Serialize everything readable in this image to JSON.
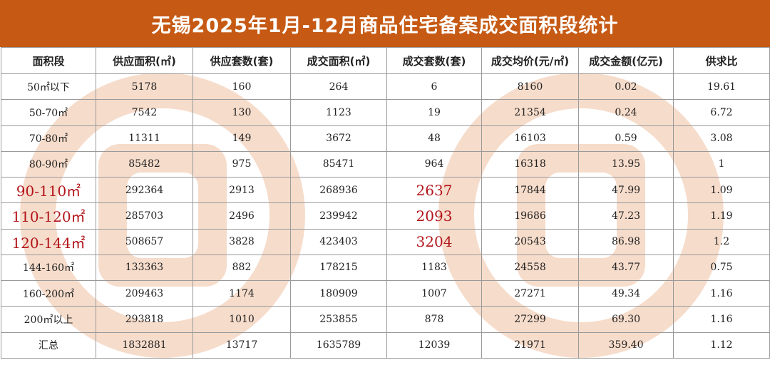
{
  "title": "无锡2025年1月-12月商品住宅备案成交面积段统计",
  "columns": [
    "面积段",
    "供应面积(㎡)",
    "供应套数(套)",
    "成交面积(㎡)",
    "成交套数(套)",
    "成交均价(元/㎡)",
    "成交金额(亿元)",
    "供求比"
  ],
  "rows": [
    {
      "segment": "50㎡以下",
      "supply_area": "5178",
      "supply_units": "160",
      "deal_area": "264",
      "deal_units": "6",
      "avg_price": "8160",
      "amount": "0.02",
      "ratio": "19.61",
      "highlight": false
    },
    {
      "segment": "50-70㎡",
      "supply_area": "7542",
      "supply_units": "130",
      "deal_area": "1123",
      "deal_units": "19",
      "avg_price": "21354",
      "amount": "0.24",
      "ratio": "6.72",
      "highlight": false
    },
    {
      "segment": "70-80㎡",
      "supply_area": "11311",
      "supply_units": "149",
      "deal_area": "3672",
      "deal_units": "48",
      "avg_price": "16103",
      "amount": "0.59",
      "ratio": "3.08",
      "highlight": false
    },
    {
      "segment": "80-90㎡",
      "supply_area": "85482",
      "supply_units": "975",
      "deal_area": "85471",
      "deal_units": "964",
      "avg_price": "16318",
      "amount": "13.95",
      "ratio": "1",
      "highlight": false
    },
    {
      "segment": "90-110㎡",
      "supply_area": "292364",
      "supply_units": "2913",
      "deal_area": "268936",
      "deal_units": "2637",
      "avg_price": "17844",
      "amount": "47.99",
      "ratio": "1.09",
      "highlight": true
    },
    {
      "segment": "110-120㎡",
      "supply_area": "285703",
      "supply_units": "2496",
      "deal_area": "239942",
      "deal_units": "2093",
      "avg_price": "19686",
      "amount": "47.23",
      "ratio": "1.19",
      "highlight": true
    },
    {
      "segment": "120-144㎡",
      "supply_area": "508657",
      "supply_units": "3828",
      "deal_area": "423403",
      "deal_units": "3204",
      "avg_price": "20543",
      "amount": "86.98",
      "ratio": "1.2",
      "highlight": true
    },
    {
      "segment": "144-160㎡",
      "supply_area": "133363",
      "supply_units": "882",
      "deal_area": "178215",
      "deal_units": "1183",
      "avg_price": "24558",
      "amount": "43.77",
      "ratio": "0.75",
      "highlight": false
    },
    {
      "segment": "160-200㎡",
      "supply_area": "209463",
      "supply_units": "1174",
      "deal_area": "180909",
      "deal_units": "1007",
      "avg_price": "27271",
      "amount": "49.34",
      "ratio": "1.16",
      "highlight": false
    },
    {
      "segment": "200㎡以上",
      "supply_area": "293818",
      "supply_units": "1010",
      "deal_area": "253855",
      "deal_units": "878",
      "avg_price": "27299",
      "amount": "69.30",
      "ratio": "1.16",
      "highlight": false
    },
    {
      "segment": "汇总",
      "supply_area": "1832881",
      "supply_units": "13717",
      "deal_area": "1635789",
      "deal_units": "12039",
      "avg_price": "21971",
      "amount": "359.40",
      "ratio": "1.12",
      "highlight": false
    }
  ],
  "colors": {
    "title_bg": "#c65a14",
    "title_text": "#ffffff",
    "highlight_text": "#b3151b",
    "watermark": "#f6dccb",
    "grid": "#9a9a9a"
  },
  "icons": {
    "watermark": "brand-watermark-logo"
  }
}
